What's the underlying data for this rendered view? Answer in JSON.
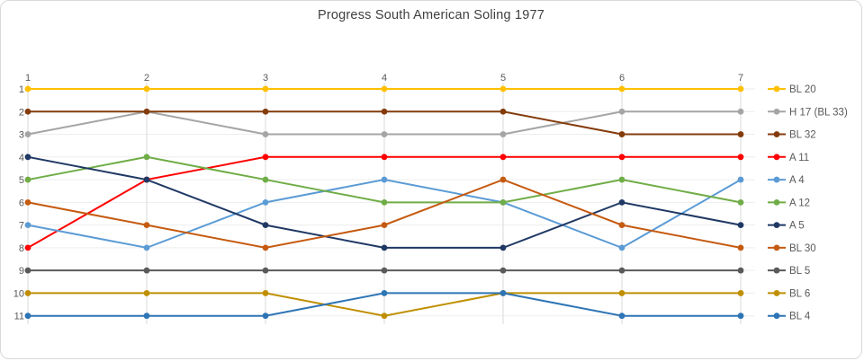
{
  "chart_data": {
    "type": "line",
    "subtype": "bump-rank-chart",
    "title": "Progress South American Soling 1977",
    "xlabel": "",
    "ylabel": "",
    "x": [
      1,
      2,
      3,
      4,
      5,
      6,
      7
    ],
    "x_tick_labels": [
      "1",
      "2",
      "3",
      "4",
      "5",
      "6",
      "7"
    ],
    "y_tick_labels": [
      "1",
      "2",
      "3",
      "4",
      "5",
      "6",
      "7",
      "8",
      "9",
      "10",
      "11"
    ],
    "y_axis_inverted": true,
    "ylim": [
      1,
      11
    ],
    "grid": true,
    "legend_position": "right",
    "series": [
      {
        "name": "BL 20",
        "color": "#FFC000",
        "ranks": [
          1,
          1,
          1,
          1,
          1,
          1,
          1
        ]
      },
      {
        "name": "H 17 (BL 33)",
        "color": "#A5A5A5",
        "ranks": [
          3,
          2,
          3,
          3,
          3,
          2,
          2
        ]
      },
      {
        "name": "BL 32",
        "color": "#843C0C",
        "ranks": [
          2,
          2,
          2,
          2,
          2,
          3,
          3
        ]
      },
      {
        "name": "A 11",
        "color": "#FF0000",
        "ranks": [
          8,
          5,
          4,
          4,
          4,
          4,
          4
        ]
      },
      {
        "name": "A 4",
        "color": "#5B9BD5",
        "ranks": [
          7,
          8,
          6,
          5,
          6,
          8,
          5
        ]
      },
      {
        "name": "A 12",
        "color": "#70AD47",
        "ranks": [
          5,
          4,
          5,
          6,
          6,
          5,
          6
        ]
      },
      {
        "name": "A 5",
        "color": "#1F3864",
        "ranks": [
          4,
          5,
          7,
          8,
          8,
          6,
          7
        ]
      },
      {
        "name": "BL 30",
        "color": "#C55A11",
        "ranks": [
          6,
          7,
          8,
          7,
          5,
          7,
          8
        ]
      },
      {
        "name": "BL 5",
        "color": "#5A5A5A",
        "ranks": [
          9,
          9,
          9,
          9,
          9,
          9,
          9
        ]
      },
      {
        "name": "BL 6",
        "color": "#BF8F00",
        "ranks": [
          10,
          10,
          10,
          11,
          10,
          10,
          10
        ]
      },
      {
        "name": "BL 4",
        "color": "#2E75B6",
        "ranks": [
          11,
          11,
          11,
          10,
          10,
          11,
          11
        ]
      }
    ],
    "colors": {
      "background": "#FFFFFF",
      "border": "#D9D9D9",
      "title_text": "#404040",
      "axis_text": "#595959",
      "vertical_gridline": "#D9D9D9",
      "horizontal_gridline": "#EDEDED"
    }
  }
}
